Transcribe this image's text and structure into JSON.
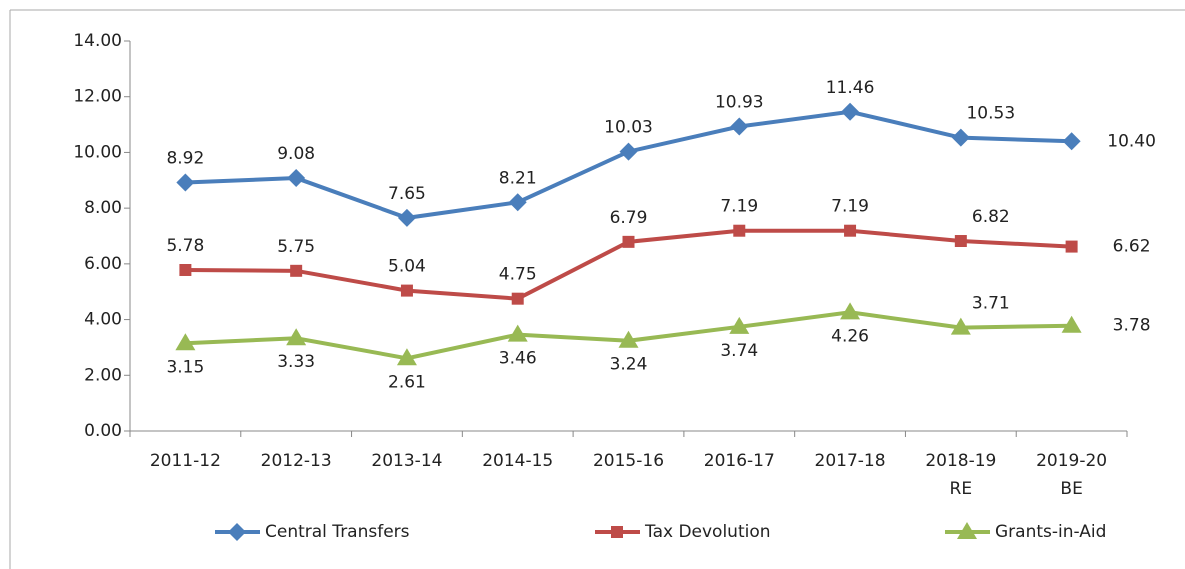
{
  "chart_data": {
    "type": "line",
    "categories": [
      "2011-12",
      "2012-13",
      "2013-14",
      "2014-15",
      "2015-16",
      "2016-17",
      "2017-18",
      "2018-19\nRE",
      "2019-20\nBE"
    ],
    "series": [
      {
        "name": "Central Transfers",
        "color": "#4a7ebb",
        "marker": "diamond",
        "values": [
          8.92,
          9.08,
          7.65,
          8.21,
          10.03,
          10.93,
          11.46,
          10.53,
          10.4
        ],
        "value_labels": [
          "8.92",
          "9.08",
          "7.65",
          "8.21",
          "10.03",
          "10.93",
          "11.46",
          "10.53",
          "10.40"
        ]
      },
      {
        "name": "Tax Devolution",
        "color": "#be4b48",
        "marker": "square",
        "values": [
          5.78,
          5.75,
          5.04,
          4.75,
          6.79,
          7.19,
          7.19,
          6.82,
          6.62
        ]
      },
      {
        "name": "Grants-in-Aid",
        "color": "#98b954",
        "marker": "triangle",
        "values": [
          3.15,
          3.33,
          2.61,
          3.46,
          3.24,
          3.74,
          4.26,
          3.71,
          3.78
        ]
      }
    ],
    "ylim": [
      0,
      14
    ],
    "yticks": [
      {
        "value": 0,
        "label": "0.00"
      },
      {
        "value": 2,
        "label": "2.00"
      },
      {
        "value": 4,
        "label": "4.00"
      },
      {
        "value": 6,
        "label": "6.00"
      },
      {
        "value": 8,
        "label": "8.00"
      },
      {
        "value": 10,
        "label": "10.00"
      },
      {
        "value": 12,
        "label": "12.00"
      },
      {
        "value": 14,
        "label": "14.00"
      }
    ],
    "legend": "bottom"
  }
}
